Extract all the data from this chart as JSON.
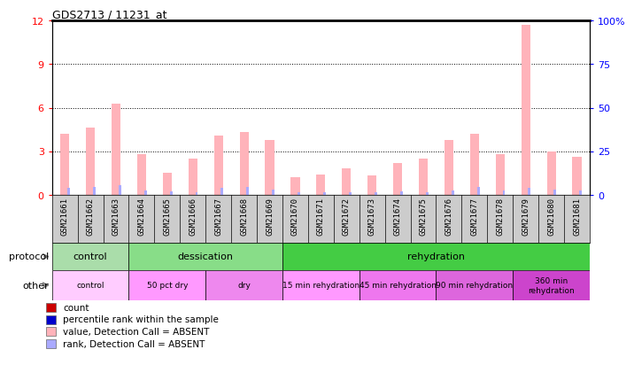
{
  "title": "GDS2713 / 11231_at",
  "samples": [
    "GSM21661",
    "GSM21662",
    "GSM21663",
    "GSM21664",
    "GSM21665",
    "GSM21666",
    "GSM21667",
    "GSM21668",
    "GSM21669",
    "GSM21670",
    "GSM21671",
    "GSM21672",
    "GSM21673",
    "GSM21674",
    "GSM21675",
    "GSM21676",
    "GSM21677",
    "GSM21678",
    "GSM21679",
    "GSM21680",
    "GSM21681"
  ],
  "pink_bars": [
    4.2,
    4.6,
    6.3,
    2.8,
    1.5,
    2.5,
    4.1,
    4.3,
    3.8,
    1.2,
    1.4,
    1.8,
    1.3,
    2.2,
    2.5,
    3.8,
    4.2,
    2.8,
    11.7,
    3.0,
    2.6
  ],
  "blue_bars": [
    0.45,
    0.55,
    0.65,
    0.32,
    0.22,
    0.18,
    0.48,
    0.52,
    0.38,
    0.18,
    0.18,
    0.18,
    0.18,
    0.22,
    0.18,
    0.28,
    0.52,
    0.32,
    0.45,
    0.38,
    0.28
  ],
  "pink_color": "#FFB3BA",
  "blue_color": "#AAAAFF",
  "ylim_left": [
    0,
    12
  ],
  "ylim_right": [
    0,
    100
  ],
  "yticks_left": [
    0,
    3,
    6,
    9,
    12
  ],
  "yticks_right": [
    0,
    25,
    50,
    75,
    100
  ],
  "ytick_labels_left": [
    "0",
    "3",
    "6",
    "9",
    "12"
  ],
  "ytick_labels_right": [
    "0",
    "25",
    "50",
    "75",
    "100%"
  ],
  "protocol_spans": [
    {
      "label": "control",
      "start": 0,
      "end": 3,
      "color": "#AADDAA"
    },
    {
      "label": "dessication",
      "start": 3,
      "end": 9,
      "color": "#88DD88"
    },
    {
      "label": "rehydration",
      "start": 9,
      "end": 21,
      "color": "#44CC44"
    }
  ],
  "other_spans": [
    {
      "label": "control",
      "start": 0,
      "end": 3,
      "color": "#FFCCFF"
    },
    {
      "label": "50 pct dry",
      "start": 3,
      "end": 6,
      "color": "#FF99FF"
    },
    {
      "label": "dry",
      "start": 6,
      "end": 9,
      "color": "#EE88EE"
    },
    {
      "label": "15 min rehydration",
      "start": 9,
      "end": 12,
      "color": "#FF99FF"
    },
    {
      "label": "45 min rehydration",
      "start": 12,
      "end": 15,
      "color": "#EE77EE"
    },
    {
      "label": "90 min rehydration",
      "start": 15,
      "end": 18,
      "color": "#DD66DD"
    },
    {
      "label": "360 min\nrehydration",
      "start": 18,
      "end": 21,
      "color": "#CC44CC"
    }
  ],
  "legend_items": [
    {
      "color": "#CC0000",
      "label": "count"
    },
    {
      "color": "#0000CC",
      "label": "percentile rank within the sample"
    },
    {
      "color": "#FFB3BA",
      "label": "value, Detection Call = ABSENT"
    },
    {
      "color": "#AAAAFF",
      "label": "rank, Detection Call = ABSENT"
    }
  ],
  "xticklabel_bg": "#CCCCCC",
  "bar_width": 0.35,
  "blue_bar_width": 0.1
}
